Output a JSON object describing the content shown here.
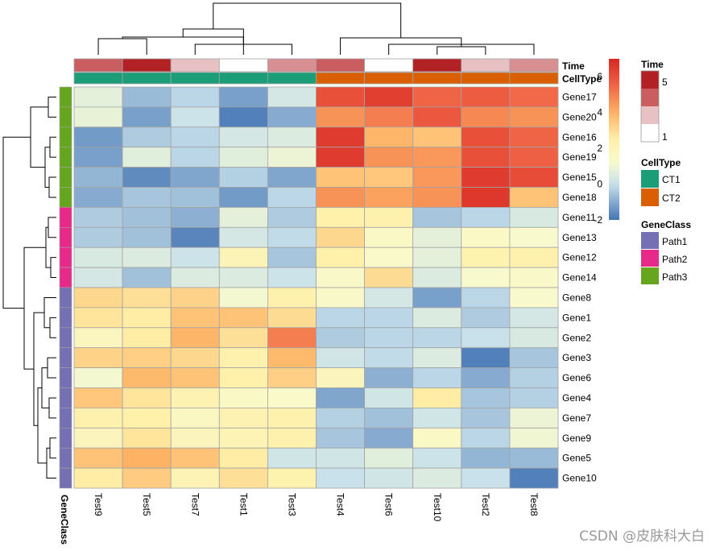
{
  "chart_data": {
    "type": "heatmap",
    "rows": [
      "Gene17",
      "Gene20",
      "Gene16",
      "Gene19",
      "Gene15",
      "Gene18",
      "Gene11",
      "Gene13",
      "Gene12",
      "Gene14",
      "Gene8",
      "Gene1",
      "Gene2",
      "Gene3",
      "Gene6",
      "Gene4",
      "Gene7",
      "Gene9",
      "Gene5",
      "Gene10"
    ],
    "columns": [
      "Test9",
      "Test5",
      "Test7",
      "Test1",
      "Test3",
      "Test4",
      "Test6",
      "Test10",
      "Test2",
      "Test8"
    ],
    "values": [
      [
        0.7,
        -0.7,
        -0.2,
        -1.2,
        0.3,
        6.0,
        6.4,
        5.5,
        5.7,
        5.4
      ],
      [
        0.8,
        -1.2,
        0.1,
        -1.8,
        -1.0,
        4.6,
        5.0,
        5.8,
        4.8,
        4.6
      ],
      [
        -1.3,
        -0.4,
        -0.2,
        0.3,
        0.5,
        6.5,
        3.9,
        3.6,
        6.0,
        5.5
      ],
      [
        -1.2,
        0.6,
        -0.2,
        0.6,
        0.9,
        6.5,
        4.6,
        4.5,
        6.0,
        5.6
      ],
      [
        -0.8,
        -1.6,
        -1.1,
        -0.3,
        -1.1,
        3.6,
        3.5,
        4.5,
        6.5,
        6.1
      ],
      [
        -1.0,
        -0.5,
        -0.6,
        -1.3,
        -0.2,
        4.6,
        4.3,
        4.6,
        6.6,
        3.6
      ],
      [
        -0.4,
        -0.6,
        -0.9,
        0.7,
        -0.4,
        2.5,
        2.4,
        -0.5,
        -0.2,
        0.4
      ],
      [
        -0.4,
        -0.6,
        -1.7,
        0.3,
        -0.1,
        3.1,
        1.5,
        0.7,
        1.5,
        1.2
      ],
      [
        0.4,
        0.5,
        0.1,
        2.0,
        -0.5,
        2.5,
        1.3,
        0.7,
        2.3,
        2.4
      ],
      [
        0.3,
        -0.6,
        0.5,
        0.5,
        0.1,
        1.4,
        3.0,
        0.5,
        1.2,
        1.4
      ],
      [
        3.1,
        2.9,
        3.2,
        1.1,
        2.4,
        1.4,
        0.3,
        -1.2,
        -0.2,
        1.2
      ],
      [
        2.8,
        2.6,
        3.6,
        3.6,
        3.0,
        -0.2,
        -0.2,
        0.5,
        -0.4,
        0.3
      ],
      [
        1.7,
        2.6,
        3.9,
        2.9,
        5.0,
        -0.4,
        -0.2,
        -0.2,
        0.0,
        0.4
      ],
      [
        3.2,
        3.3,
        3.1,
        2.4,
        3.8,
        0.2,
        -0.1,
        0.5,
        -1.8,
        -0.5
      ],
      [
        1.1,
        3.8,
        3.6,
        2.5,
        3.3,
        1.8,
        -0.9,
        -0.2,
        -1.0,
        -0.3
      ],
      [
        3.5,
        2.8,
        2.2,
        1.5,
        1.3,
        -1.1,
        0.2,
        2.6,
        -0.5,
        -0.3
      ],
      [
        2.4,
        2.5,
        1.6,
        2.2,
        2.4,
        -0.3,
        -0.6,
        0.2,
        -0.5,
        0.9
      ],
      [
        1.8,
        2.8,
        1.8,
        2.1,
        2.4,
        -0.5,
        -1.0,
        1.5,
        -0.2,
        1.0
      ],
      [
        3.6,
        4.0,
        3.6,
        2.6,
        0.2,
        0.2,
        0.6,
        0.1,
        -0.8,
        -0.7
      ],
      [
        2.6,
        3.4,
        2.1,
        2.9,
        2.3,
        0.0,
        0.2,
        0.5,
        0.0,
        -1.8
      ]
    ],
    "row_annotation": {
      "name": "GeneClass",
      "values": [
        "Path3",
        "Path3",
        "Path3",
        "Path3",
        "Path3",
        "Path3",
        "Path2",
        "Path2",
        "Path2",
        "Path2",
        "Path1",
        "Path1",
        "Path1",
        "Path1",
        "Path1",
        "Path1",
        "Path1",
        "Path1",
        "Path1",
        "Path1"
      ],
      "levels": [
        "Path1",
        "Path2",
        "Path3"
      ],
      "colors": {
        "Path1": "#7570b3",
        "Path2": "#e7298a",
        "Path3": "#66a61e"
      }
    },
    "column_annotations": [
      {
        "name": "Time",
        "values": [
          4,
          5,
          2,
          1,
          3,
          4,
          1,
          5,
          2,
          3
        ],
        "legend_ticks": [
          "5",
          "1"
        ],
        "range": [
          1,
          5
        ]
      },
      {
        "name": "CellType",
        "values": [
          "CT1",
          "CT1",
          "CT1",
          "CT1",
          "CT1",
          "CT2",
          "CT2",
          "CT2",
          "CT2",
          "CT2"
        ],
        "levels": [
          "CT1",
          "CT2"
        ],
        "colors": {
          "CT1": "#1b9e77",
          "CT2": "#d95f02"
        }
      }
    ],
    "colorbar": {
      "range": [
        -2,
        7
      ],
      "ticks": [
        "6",
        "4",
        "2",
        "0",
        "-2"
      ]
    },
    "legend_position": "right",
    "cell_border": "#a3a3a3"
  },
  "watermark": "CSDN @皮肤科大白"
}
